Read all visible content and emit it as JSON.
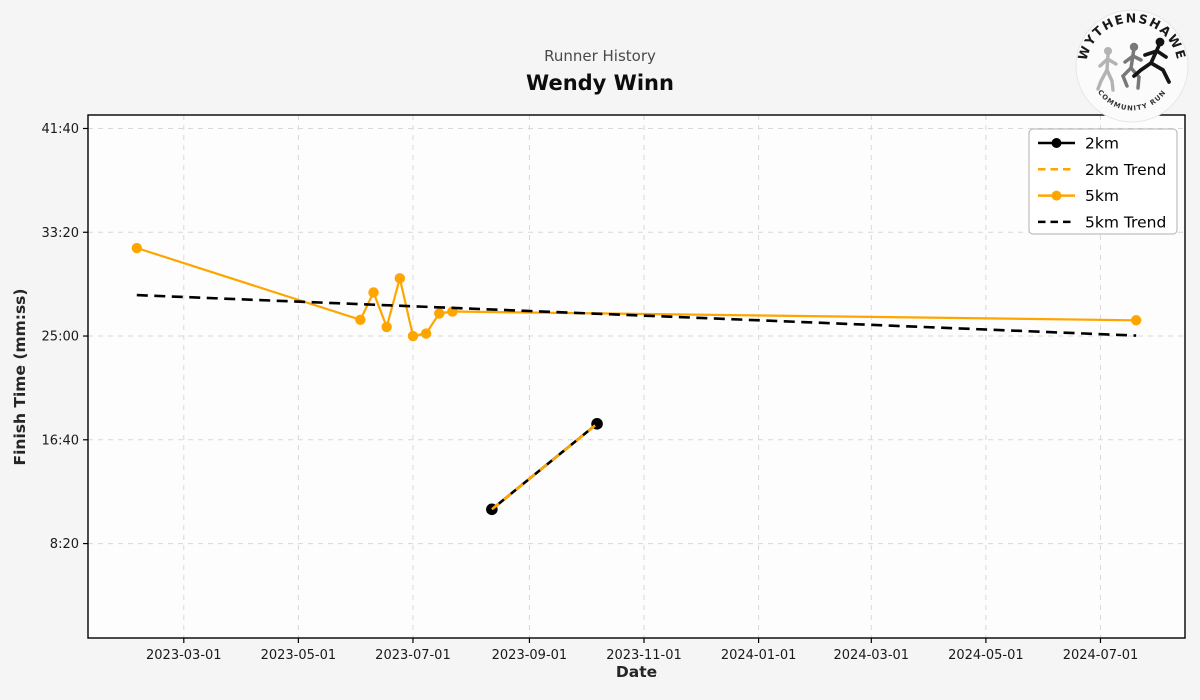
{
  "logo": {
    "top_text": "WYTHENSHAWE",
    "bottom_text": "COMMUNITY RUN"
  },
  "colors": {
    "accent_orange": "#FFA500",
    "series_black": "#000000",
    "grid": "#d8d8d8",
    "figure_bg": "#f5f5f5",
    "plot_bg": "#fdfdfd"
  },
  "chart_data": {
    "type": "line",
    "title": "Runner History",
    "subtitle": "Wendy Winn",
    "xlabel": "Date",
    "ylabel": "Finish Time (mm:ss)",
    "grid": true,
    "legend_position": "upper right",
    "x_domain": [
      "2023-01-09",
      "2024-08-15"
    ],
    "y_domain_seconds": [
      45,
      2565
    ],
    "y_ticks": [
      {
        "seconds": 2500,
        "label": "41:40"
      },
      {
        "seconds": 2000,
        "label": "33:20"
      },
      {
        "seconds": 1500,
        "label": "25:00"
      },
      {
        "seconds": 1000,
        "label": "16:40"
      },
      {
        "seconds": 500,
        "label": "8:20"
      }
    ],
    "x_ticks": [
      {
        "date": "2023-03-01",
        "label": "2023-03-01"
      },
      {
        "date": "2023-05-01",
        "label": "2023-05-01"
      },
      {
        "date": "2023-07-01",
        "label": "2023-07-01"
      },
      {
        "date": "2023-09-01",
        "label": "2023-09-01"
      },
      {
        "date": "2023-11-01",
        "label": "2023-11-01"
      },
      {
        "date": "2024-01-01",
        "label": "2024-01-01"
      },
      {
        "date": "2024-03-01",
        "label": "2024-03-01"
      },
      {
        "date": "2024-05-01",
        "label": "2024-05-01"
      },
      {
        "date": "2024-07-01",
        "label": "2024-07-01"
      }
    ],
    "series": [
      {
        "name": "2km",
        "color": "#000000",
        "style": "solid",
        "marker": true,
        "marker_radius": 5.8,
        "width": 2.6,
        "points": [
          {
            "date": "2023-08-12",
            "time": "11:05"
          },
          {
            "date": "2023-10-07",
            "time": "17:57"
          }
        ]
      },
      {
        "name": "2km Trend",
        "color": "#FFA500",
        "style": "dashed",
        "marker": false,
        "width": 2.6,
        "dash": "9 6.5",
        "points": [
          {
            "date": "2023-08-12",
            "time": "11:05"
          },
          {
            "date": "2023-10-07",
            "time": "17:57"
          }
        ]
      },
      {
        "name": "5km",
        "color": "#FFA500",
        "style": "solid",
        "marker": true,
        "marker_radius": 5.2,
        "width": 2.2,
        "points": [
          {
            "date": "2023-02-04",
            "time": "32:04"
          },
          {
            "date": "2023-06-03",
            "time": "26:18"
          },
          {
            "date": "2023-06-10",
            "time": "28:30"
          },
          {
            "date": "2023-06-17",
            "time": "25:44"
          },
          {
            "date": "2023-06-24",
            "time": "29:38"
          },
          {
            "date": "2023-07-01",
            "time": "25:00"
          },
          {
            "date": "2023-07-08",
            "time": "25:12"
          },
          {
            "date": "2023-07-15",
            "time": "26:49"
          },
          {
            "date": "2023-07-22",
            "time": "26:58"
          },
          {
            "date": "2024-07-20",
            "time": "26:16"
          }
        ]
      },
      {
        "name": "5km Trend",
        "color": "#000000",
        "style": "dashed",
        "marker": false,
        "width": 2.6,
        "dash": "11 6.5",
        "points": [
          {
            "date": "2023-02-04",
            "time": "28:17"
          },
          {
            "date": "2024-07-20",
            "time": "25:02"
          }
        ]
      }
    ]
  }
}
